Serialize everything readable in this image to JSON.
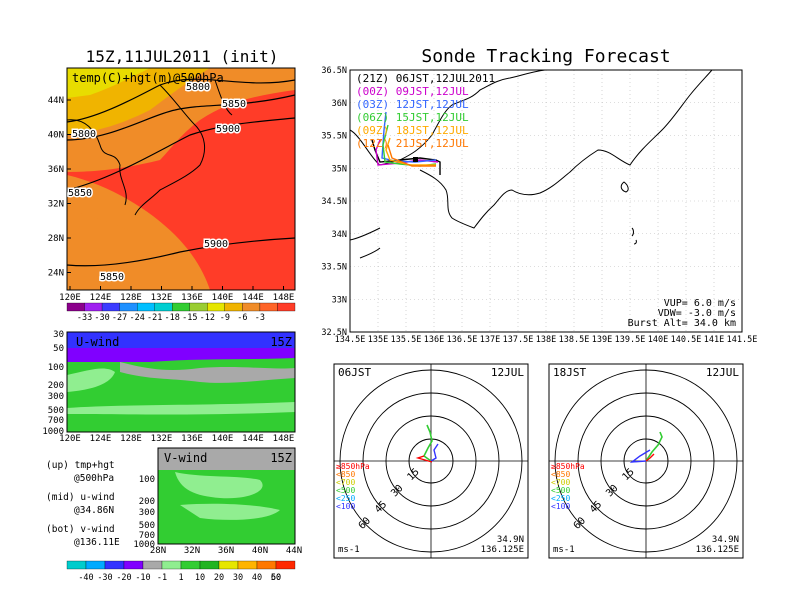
{
  "left_title": "15Z,11JUL2011 (init)",
  "right_title": "Sonde Tracking Forecast",
  "colors": {
    "temp_ramp": [
      "#8b008b",
      "#a020f0",
      "#3c3cff",
      "#1e90ff",
      "#00bfff",
      "#00ced1",
      "#32cd32",
      "#9acd32",
      "#e6e600",
      "#f0b400",
      "#f08c28",
      "#ff6428",
      "#ff3c28"
    ],
    "wind_ramp": [
      "#00cccc",
      "#00aaff",
      "#3232ff",
      "#8000ff",
      "#a9a9a9",
      "#90ee90",
      "#32cd32",
      "#22b422",
      "#e6e600",
      "#ffb400",
      "#ff7800",
      "#ff2800"
    ],
    "times": [
      "#000000",
      "#cc00cc",
      "#3366ff",
      "#33cc33",
      "#ffaa00",
      "#ff7700"
    ]
  },
  "map500": {
    "label": "temp(C)+hgt(m)@500hPa",
    "lat_ticks": [
      "44N",
      "40N",
      "36N",
      "32N",
      "28N",
      "24N"
    ],
    "lon_ticks": [
      "120E",
      "124E",
      "128E",
      "132E",
      "136E",
      "140E",
      "144E",
      "148E"
    ],
    "contours": [
      "5800",
      "5850",
      "5800",
      "5900",
      "5850",
      "5900",
      "5850"
    ],
    "colorbar_labels": [
      "-33",
      "-30",
      "-27",
      "-24",
      "-21",
      "-18",
      "-15",
      "-12",
      "-9",
      "-6",
      "-3"
    ]
  },
  "uwind": {
    "label": "U-wind",
    "time": "15Z",
    "p_ticks": [
      "30",
      "50",
      "100",
      "200",
      "300",
      "500",
      "700",
      "1000"
    ],
    "lon_ticks": [
      "120E",
      "124E",
      "128E",
      "132E",
      "136E",
      "140E",
      "144E",
      "148E"
    ]
  },
  "vwind": {
    "label": "V-wind",
    "time": "15Z",
    "p_ticks": [
      "100",
      "200",
      "300",
      "500",
      "700",
      "1000"
    ],
    "lat_ticks": [
      "28N",
      "32N",
      "36N",
      "40N",
      "44N"
    ],
    "colorbar_labels": [
      "-40",
      "-30",
      "-20",
      "-10",
      "-1",
      "1",
      "10",
      "20",
      "30",
      "40",
      "50",
      "60"
    ]
  },
  "legend_notes": [
    [
      "(up) tmp+hgt",
      "@500hPa"
    ],
    [
      "(mid) u-wind",
      "@34.86N"
    ],
    [
      "(bot) v-wind",
      "@136.11E"
    ]
  ],
  "track": {
    "entries": [
      "(21Z) 06JST,12JUL2011",
      "(00Z) 09JST,12JUL",
      "(03Z) 12JST,12JUL",
      "(06Z) 15JST,12JUL",
      "(09Z) 18JST,12JUL",
      "(12Z) 21JST,12JUL"
    ],
    "lat_ticks": [
      "36.5N",
      "36N",
      "35.5N",
      "35N",
      "34.5N",
      "34N",
      "33.5N",
      "33N",
      "32.5N"
    ],
    "lon_ticks": [
      "134.5E",
      "135E",
      "135.5E",
      "136E",
      "136.5E",
      "137E",
      "137.5E",
      "138E",
      "138.5E",
      "139E",
      "139.5E",
      "140E",
      "140.5E",
      "141E",
      "141.5E"
    ],
    "params": [
      "VUP= 6.0 m/s",
      "VDW= -3.0 m/s",
      "Burst Alt= 34.0 km"
    ]
  },
  "hodo_left": {
    "time": "06JST",
    "date": "12JUL",
    "rings": [
      "15",
      "30",
      "45",
      "60"
    ],
    "levels": [
      "≥850hPa",
      "<850",
      "<700",
      "<500",
      "<250",
      "<100"
    ],
    "unit": "ms-1",
    "location": [
      "34.9N",
      "136.125E"
    ]
  },
  "hodo_right": {
    "time": "18JST",
    "date": "12JUL",
    "rings": [
      "15",
      "30",
      "45",
      "60"
    ],
    "levels": [
      "≥850hPa",
      "<850",
      "<700",
      "<500",
      "<250",
      "<100"
    ],
    "unit": "ms-1",
    "location": [
      "34.9N",
      "136.125E"
    ]
  }
}
